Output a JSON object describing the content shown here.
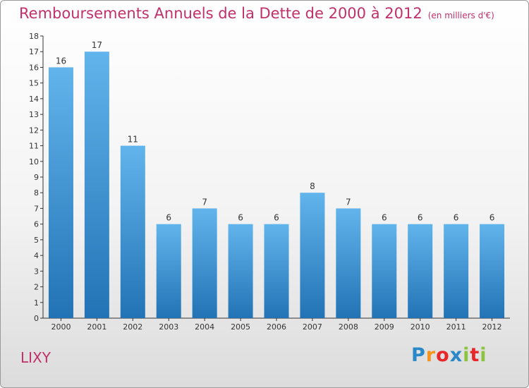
{
  "title": "Remboursements Annuels de la Dette de 2000 à 2012",
  "unit_label": "(en milliers d'€)",
  "commune": "LIXY",
  "logo": {
    "text": "Proxiti",
    "letters": [
      "P",
      "r",
      "o",
      "x",
      "i",
      "t",
      "i"
    ],
    "colors": [
      "#2a87c8",
      "#f7941d",
      "#e8262a",
      "#2a87c8",
      "#8bc53f",
      "#e8262a",
      "#8bc53f"
    ]
  },
  "colors": {
    "bar_top": "#62b4ec",
    "bar_bottom": "#2273b5",
    "title": "#c0306a",
    "axis": "#333333"
  },
  "chart_data": {
    "type": "bar",
    "categories": [
      "2000",
      "2001",
      "2002",
      "2003",
      "2004",
      "2005",
      "2006",
      "2007",
      "2008",
      "2009",
      "2010",
      "2011",
      "2012"
    ],
    "values": [
      16,
      17,
      11,
      6,
      7,
      6,
      6,
      8,
      7,
      6,
      6,
      6,
      6
    ],
    "ylim": [
      0,
      18
    ],
    "yticks": [
      0,
      1,
      2,
      3,
      4,
      5,
      6,
      7,
      8,
      9,
      10,
      11,
      12,
      13,
      14,
      15,
      16,
      17,
      18
    ],
    "grid": false,
    "legend": "none",
    "data_labels": true
  }
}
